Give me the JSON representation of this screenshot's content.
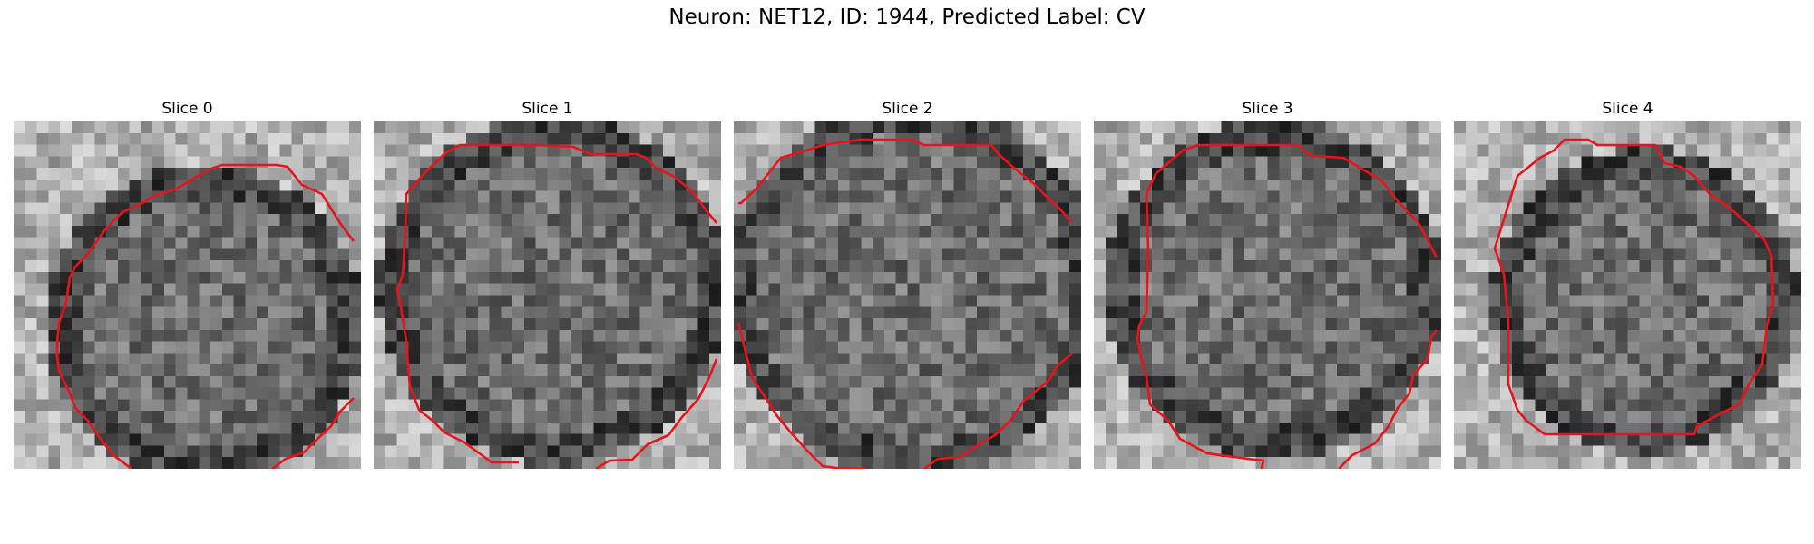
{
  "figure": {
    "title": "Neuron: NET12, ID: 1944, Predicted Label: CV"
  },
  "panels": [
    {
      "title": "Slice 0"
    },
    {
      "title": "Slice 1"
    },
    {
      "title": "Slice 2"
    },
    {
      "title": "Slice 3"
    },
    {
      "title": "Slice 4"
    }
  ],
  "contour_color": "#e8141c"
}
